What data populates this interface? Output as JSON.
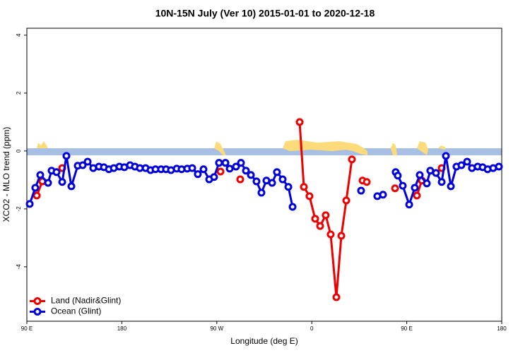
{
  "chart_data": {
    "type": "line",
    "title": "10N-15N July (Ver 10)   2015-01-01 to 2020-12-18",
    "x_label": "Longitude (deg E)",
    "y_label": "XCO2 - MLO trend (ppm)",
    "xlim": [
      90,
      540
    ],
    "ylim": [
      -5.88,
      4.24
    ],
    "xticks": [
      {
        "value": 90,
        "label": "90 E"
      },
      180,
      {
        "value": 270,
        "label": "90 W"
      },
      {
        "value": 360,
        "label": "0"
      },
      {
        "value": 450,
        "label": "90 E"
      },
      {
        "value": 540,
        "label": "180"
      }
    ],
    "yticks": [
      -4,
      -2,
      0,
      2,
      4
    ],
    "legend": "bottomleft",
    "series": [
      {
        "name": "Land (Nadir&Glint)",
        "color": "#ee0000",
        "x": [
          99.4,
          104.7,
          null,
          123.5,
          null,
          273.5,
          null,
          292.2,
          null,
          348.5,
          352.5,
          357.8,
          363.2,
          367.9,
          373.2,
          377.9,
          383.3,
          388.0,
          392.7,
          398.0,
          null,
          408.1,
          412.1,
          null,
          438.9,
          null,
          459.6,
          464.3,
          null,
          483.1
        ],
        "values": [
          -1.54,
          -1.05,
          null,
          -0.59,
          null,
          -0.71,
          null,
          -0.98,
          null,
          1.0,
          -1.24,
          -1.56,
          -2.34,
          -2.59,
          -2.22,
          -2.88,
          -5.05,
          -2.93,
          -1.71,
          -0.29,
          null,
          -1.02,
          -1.07,
          null,
          -1.29,
          null,
          -1.54,
          -1.02,
          null,
          -0.59
        ]
      },
      {
        "name": "Ocean (Glint)",
        "color": "#0000dd",
        "x": [
          92.7,
          98.0,
          102.7,
          110.1,
          113.4,
          118.1,
          123.5,
          127.5,
          132.2,
          138.2,
          142.9,
          147.6,
          152.9,
          158.3,
          163.0,
          167.7,
          172.4,
          177.7,
          182.4,
          187.8,
          192.4,
          197.1,
          202.5,
          207.2,
          211.9,
          217.2,
          221.9,
          226.6,
          232.0,
          236.6,
          242.0,
          246.7,
          252.0,
          257.4,
          262.8,
          267.4,
          272.1,
          278.2,
          282.2,
          288.2,
          292.9,
          297.6,
          302.3,
          307.6,
          312.3,
          317.0,
          322.4,
          327.0,
          332.4,
          337.8,
          341.8,
          null,
          406.7,
          null,
          422.1,
          427.5,
          null,
          439.5,
          441.5,
          446.2,
          452.3,
          457.6,
          462.3,
          469.0,
          472.3,
          477.7,
          483.1,
          487.1,
          491.8,
          497.1,
          501.8,
          507.2,
          511.8,
          517.2,
          521.9,
          526.6,
          531.9,
          537.3
        ],
        "values": [
          -1.83,
          -1.27,
          -0.83,
          -1.1,
          -0.68,
          -0.73,
          -1.07,
          -0.17,
          -1.22,
          -0.51,
          -0.49,
          -0.37,
          -0.59,
          -0.54,
          -0.56,
          -0.63,
          -0.59,
          -0.54,
          -0.56,
          -0.49,
          -0.54,
          -0.59,
          -0.59,
          -0.66,
          -0.63,
          -0.63,
          -0.63,
          -0.66,
          -0.61,
          -0.63,
          -0.61,
          -0.59,
          -0.8,
          -0.63,
          -0.98,
          -0.9,
          -0.41,
          -0.41,
          -0.61,
          -0.54,
          -0.41,
          -0.68,
          -0.83,
          -1.05,
          -1.44,
          -1.02,
          -1.1,
          -0.73,
          -0.98,
          -1.24,
          -1.93,
          null,
          -1.37,
          null,
          -1.56,
          -1.51,
          null,
          -0.73,
          -0.85,
          -1.2,
          -1.85,
          -1.27,
          -0.83,
          -1.12,
          -0.68,
          -0.76,
          -1.07,
          -0.17,
          -1.22,
          -0.54,
          -0.49,
          -0.37,
          -0.59,
          -0.54,
          -0.56,
          -0.63,
          -0.59,
          -0.54
        ]
      }
    ]
  }
}
